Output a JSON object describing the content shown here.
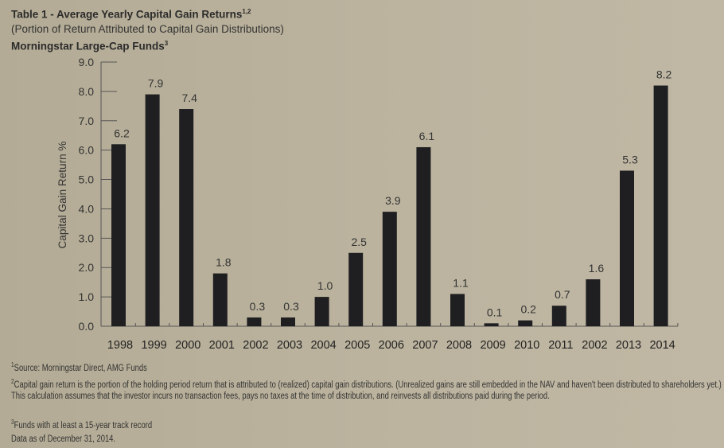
{
  "header": {
    "title": "Table 1 - Average Yearly Capital Gain Returns",
    "title_sup": "1,2",
    "subtitle": "(Portion of Return Attributed to Capital Gain Distributions)",
    "subtitle2": "Morningstar Large-Cap Funds",
    "subtitle2_sup": "3"
  },
  "chart_data": {
    "type": "bar",
    "title": "Average Yearly Capital Gain Returns",
    "xlabel": "",
    "ylabel": "Capital Gain Return %",
    "ylim": [
      0,
      9
    ],
    "yticks": [
      "0.0",
      "1.0",
      "2.0",
      "3.0",
      "4.0",
      "5.0",
      "6.0",
      "7.0",
      "8.0",
      "9.0"
    ],
    "categories": [
      "1998",
      "1999",
      "2000",
      "2001",
      "2002",
      "2003",
      "2004",
      "2005",
      "2006",
      "2007",
      "2008",
      "2009",
      "2010",
      "2011",
      "2002",
      "2013",
      "2014"
    ],
    "values": [
      6.2,
      7.9,
      7.4,
      1.8,
      0.3,
      0.3,
      1.0,
      2.5,
      3.9,
      6.1,
      1.1,
      0.1,
      0.2,
      0.7,
      1.6,
      5.3,
      8.2
    ],
    "labels": [
      "6.2",
      "7.9",
      "7.4",
      "1.8",
      "0.3",
      "0.3",
      "1.0",
      "2.5",
      "3.9",
      "6.1",
      "1.1",
      "0.1",
      "0.2",
      "0.7",
      "1.6",
      "5.3",
      "8.2"
    ],
    "bar_color": "#1f1f22",
    "grid": false
  },
  "footnotes": {
    "n1_mark": "1",
    "n1": "Source: Morningstar Direct, AMG Funds",
    "n2_mark": "2",
    "n2": "Capital gain return is the portion of the holding period return that is attributed to (realized) capital gain distributions. (Unrealized gains are still embedded in the NAV and haven't been distributed to shareholders yet.) This calculation assumes that the investor incurs no transaction fees, pays no taxes at the time of distribution, and reinvests all distributions paid during the period.",
    "n3_mark": "3",
    "n3": "Funds with at least a 15-year track record",
    "asof": "Data as of December 31, 2014."
  }
}
